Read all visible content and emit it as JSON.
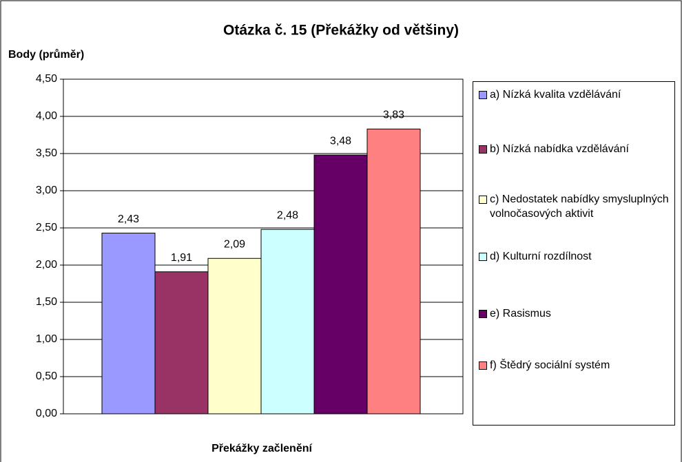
{
  "chart_data": {
    "type": "bar",
    "title": "Otázka č. 15 (Překážky od většiny)",
    "y_label": "Body (průměr)",
    "x_label": "Překážky začlenění",
    "categories": [
      null
    ],
    "ylim": [
      0,
      4.5
    ],
    "yticks": [
      {
        "value": 0,
        "label": "0,00"
      },
      {
        "value": 0.5,
        "label": "0,50"
      },
      {
        "value": 1,
        "label": "1,00"
      },
      {
        "value": 1.5,
        "label": "1,50"
      },
      {
        "value": 2,
        "label": "2,00"
      },
      {
        "value": 2.5,
        "label": "2,50"
      },
      {
        "value": 3,
        "label": "3,00"
      },
      {
        "value": 3.5,
        "label": "3,50"
      },
      {
        "value": 4,
        "label": "4,00"
      },
      {
        "value": 4.5,
        "label": "4,50"
      }
    ],
    "grid": true,
    "legend": "right",
    "series": [
      {
        "name": "a) Nízká kvalita vzdělávání",
        "color": "#9999ff",
        "values": [
          2.43
        ],
        "value_labels": [
          "2,43"
        ]
      },
      {
        "name": "b) Nízká nabídka vzdělávání",
        "color": "#993366",
        "values": [
          1.91
        ],
        "value_labels": [
          "1,91"
        ]
      },
      {
        "name": "c) Nedostatek nabídky smysluplných volnočasových aktivit",
        "color": "#ffffcc",
        "values": [
          2.09
        ],
        "value_labels": [
          "2,09"
        ]
      },
      {
        "name": "d) Kulturní rozdílnost",
        "color": "#ccffff",
        "values": [
          2.48
        ],
        "value_labels": [
          "2,48"
        ]
      },
      {
        "name": "e) Rasismus",
        "color": "#660066",
        "values": [
          3.48
        ],
        "value_labels": [
          "3,48"
        ]
      },
      {
        "name": "f) Štědrý sociální systém",
        "color": "#ff8080",
        "values": [
          3.83
        ],
        "value_labels": [
          "3,83"
        ]
      }
    ]
  }
}
